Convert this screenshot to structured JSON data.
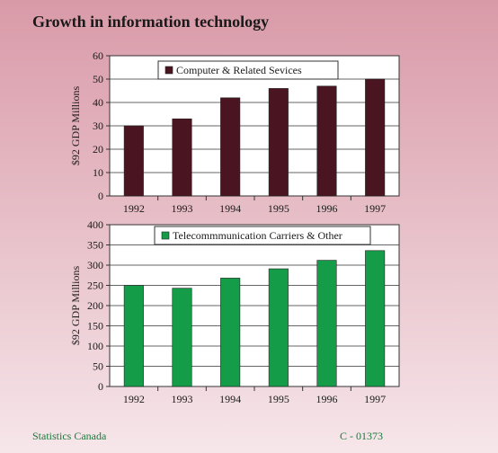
{
  "title": "Growth in information technology",
  "footer": {
    "source": "Statistics Canada",
    "code": "C - 01373"
  },
  "chart_data": [
    {
      "type": "bar",
      "legend": "Computer & Related Sevices",
      "ylabel": "$92 GDP Millions",
      "categories": [
        "1992",
        "1993",
        "1994",
        "1995",
        "1996",
        "1997"
      ],
      "values": [
        30,
        33,
        42,
        46,
        47,
        50
      ],
      "ylim": [
        0,
        60
      ],
      "yticks": [
        0,
        10,
        20,
        30,
        40,
        50,
        60
      ],
      "color": "#4a1520",
      "grid": true,
      "legend_position": "top-center"
    },
    {
      "type": "bar",
      "legend": "Telecommmunication Carriers & Other",
      "ylabel": "$92 GDP Millions",
      "categories": [
        "1992",
        "1993",
        "1994",
        "1995",
        "1996",
        "1997"
      ],
      "values": [
        250,
        243,
        268,
        291,
        312,
        336
      ],
      "ylim": [
        0,
        400
      ],
      "yticks": [
        0,
        50,
        100,
        150,
        200,
        250,
        300,
        350,
        400
      ],
      "color": "#159c48",
      "grid": true,
      "legend_position": "top-center"
    }
  ]
}
